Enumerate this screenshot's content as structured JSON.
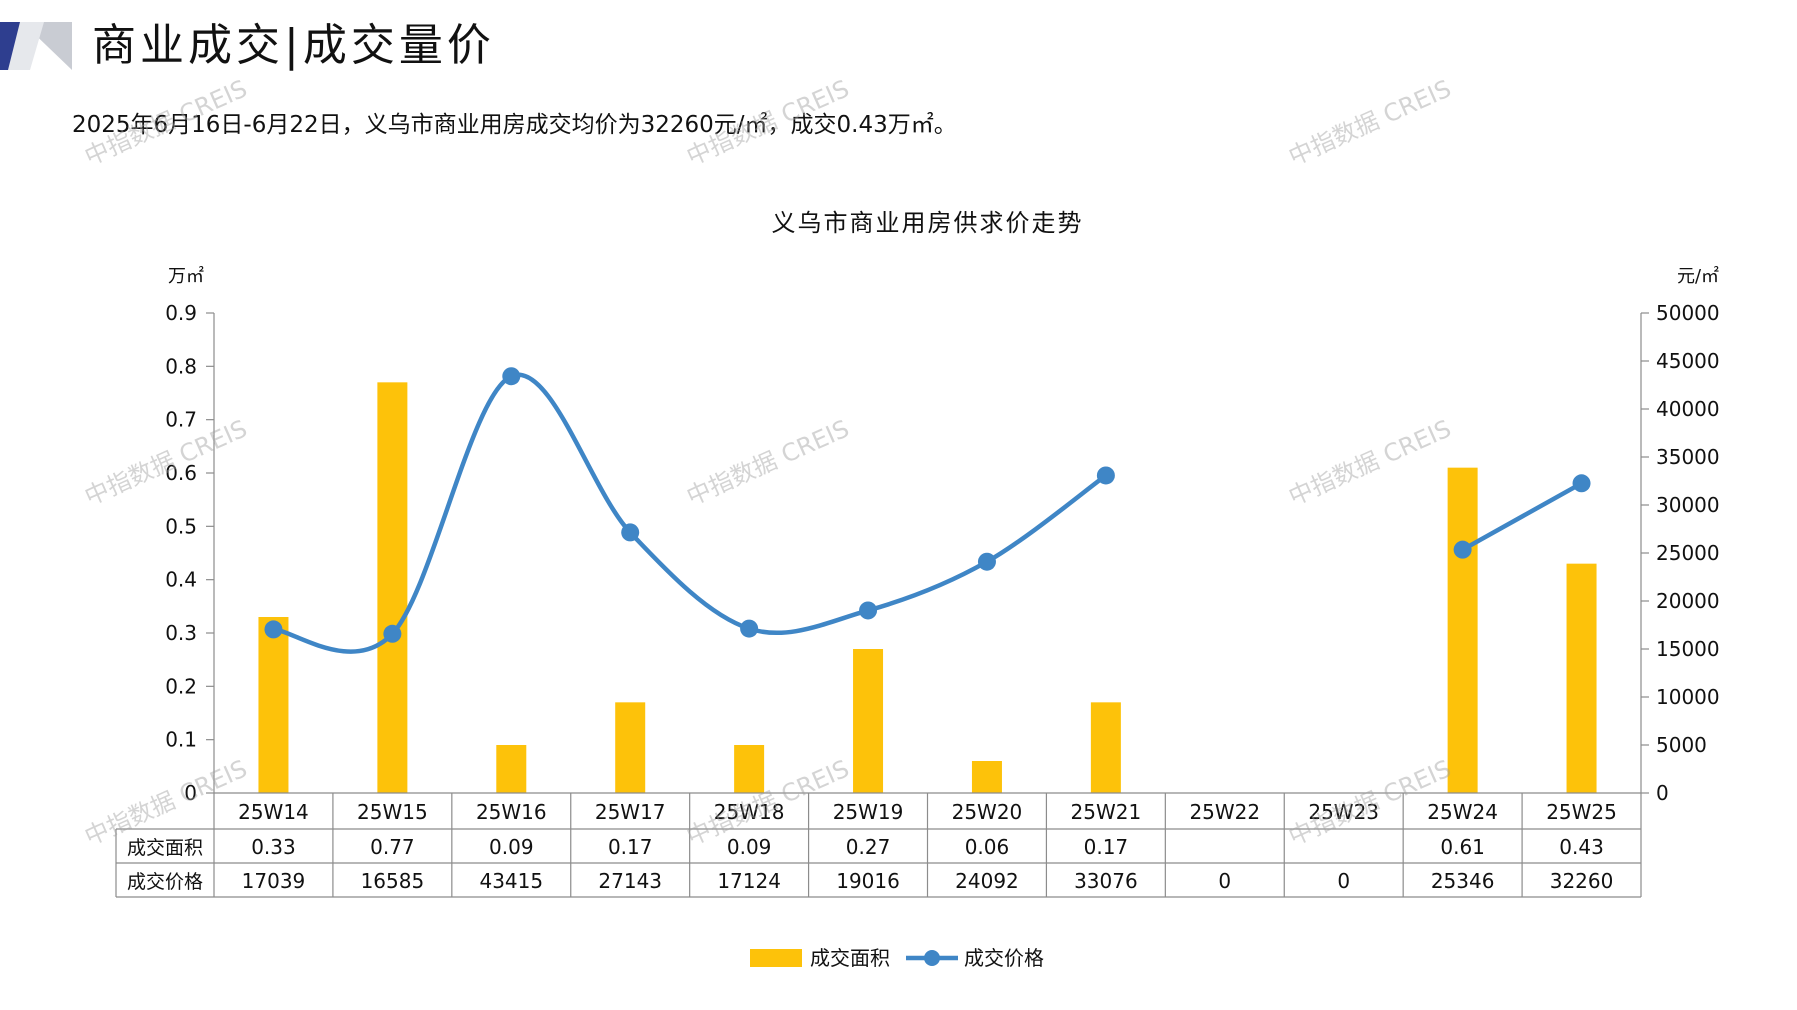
{
  "header": {
    "title": "商业成交|成交量价",
    "summary": "2025年6月16日-6月22日，义乌市商业用房成交均价为32260元/㎡，成交0.43万㎡。"
  },
  "watermark": "中指数据 CREIS",
  "colors": {
    "bar": "#FDC20A",
    "line": "#3F86C6",
    "axis": "#8C8C8C",
    "logo_dark": "#2E3E8F",
    "logo_light": "#C9CCD3"
  },
  "chart_data": {
    "type": "bar",
    "title": "义乌市商业用房供求价走势",
    "left_unit": "万㎡",
    "right_unit": "元/㎡",
    "categories": [
      "25W14",
      "25W15",
      "25W16",
      "25W17",
      "25W18",
      "25W19",
      "25W20",
      "25W21",
      "25W22",
      "25W23",
      "25W24",
      "25W25"
    ],
    "y_left": {
      "min": 0,
      "max": 0.9,
      "ticks": [
        "0",
        "0.1",
        "0.2",
        "0.3",
        "0.4",
        "0.5",
        "0.6",
        "0.7",
        "0.8",
        "0.9"
      ]
    },
    "y_right": {
      "min": 0,
      "max": 50000,
      "ticks": [
        "0",
        "5000",
        "10000",
        "15000",
        "20000",
        "25000",
        "30000",
        "35000",
        "40000",
        "45000",
        "50000"
      ]
    },
    "series": [
      {
        "name": "成交面积",
        "type": "bar",
        "axis": "left",
        "values": [
          0.33,
          0.77,
          0.09,
          0.17,
          0.09,
          0.27,
          0.06,
          0.17,
          null,
          null,
          0.61,
          0.43
        ],
        "table_values": [
          "0.33",
          "0.77",
          "0.09",
          "0.17",
          "0.09",
          "0.27",
          "0.06",
          "0.17",
          "",
          "",
          "0.61",
          "0.43"
        ]
      },
      {
        "name": "成交价格",
        "type": "line",
        "axis": "right",
        "values": [
          17039,
          16585,
          43415,
          27143,
          17124,
          19016,
          24092,
          33076,
          null,
          null,
          25346,
          32260
        ],
        "table_values": [
          "17039",
          "16585",
          "43415",
          "27143",
          "17124",
          "19016",
          "24092",
          "33076",
          "0",
          "0",
          "25346",
          "32260"
        ]
      }
    ],
    "legend_position": "bottom",
    "grid": false,
    "data_table": true
  }
}
